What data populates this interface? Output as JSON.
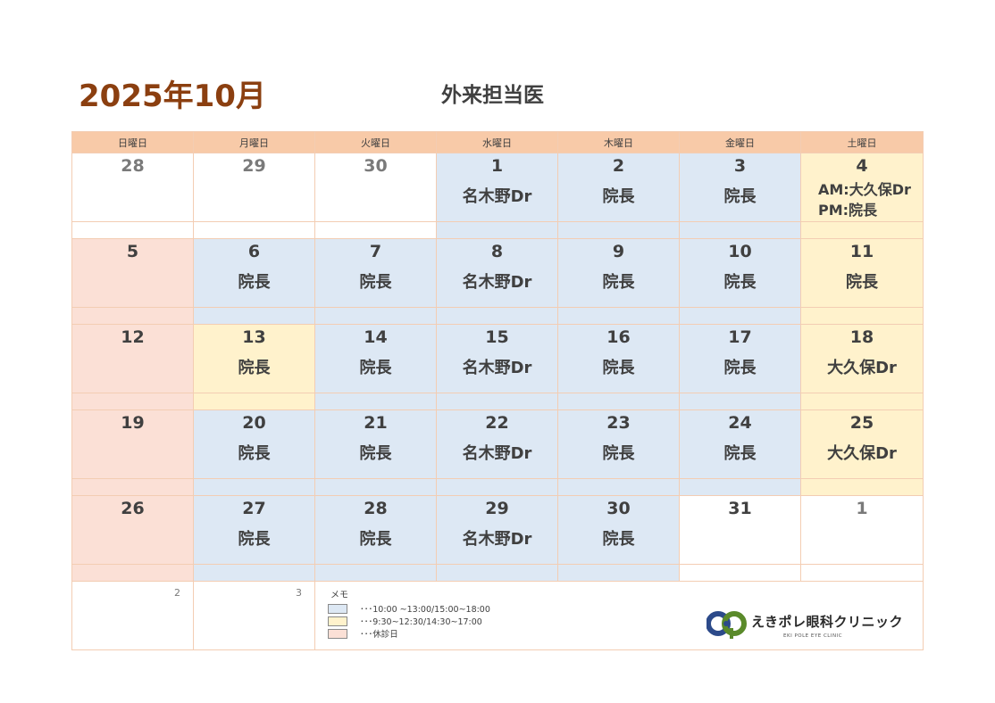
{
  "header": {
    "month_title": "2025年10月",
    "subtitle": "外来担当医"
  },
  "calendar": {
    "weekdays": [
      "日曜日",
      "月曜日",
      "火曜日",
      "水曜日",
      "木曜日",
      "金曜日",
      "土曜日"
    ],
    "weeks": [
      [
        {
          "date": "28",
          "doctor": "",
          "type": "other",
          "color": "white"
        },
        {
          "date": "29",
          "doctor": "",
          "type": "other",
          "color": "white"
        },
        {
          "date": "30",
          "doctor": "",
          "type": "other",
          "color": "white"
        },
        {
          "date": "1",
          "doctor": "名木野Dr",
          "type": "current",
          "color": "blue"
        },
        {
          "date": "2",
          "doctor": "院長",
          "type": "current",
          "color": "blue"
        },
        {
          "date": "3",
          "doctor": "院長",
          "type": "current",
          "color": "blue"
        },
        {
          "date": "4",
          "doctor_am": "AM:大久保Dr",
          "doctor_pm": "PM:院長",
          "type": "current",
          "color": "yellow"
        }
      ],
      [
        {
          "date": "5",
          "doctor": "",
          "type": "current",
          "color": "pink"
        },
        {
          "date": "6",
          "doctor": "院長",
          "type": "current",
          "color": "blue"
        },
        {
          "date": "7",
          "doctor": "院長",
          "type": "current",
          "color": "blue"
        },
        {
          "date": "8",
          "doctor": "名木野Dr",
          "type": "current",
          "color": "blue"
        },
        {
          "date": "9",
          "doctor": "院長",
          "type": "current",
          "color": "blue"
        },
        {
          "date": "10",
          "doctor": "院長",
          "type": "current",
          "color": "blue"
        },
        {
          "date": "11",
          "doctor": "院長",
          "type": "current",
          "color": "yellow"
        }
      ],
      [
        {
          "date": "12",
          "doctor": "",
          "type": "current",
          "color": "pink"
        },
        {
          "date": "13",
          "doctor": "院長",
          "type": "current",
          "color": "yellow"
        },
        {
          "date": "14",
          "doctor": "院長",
          "type": "current",
          "color": "blue"
        },
        {
          "date": "15",
          "doctor": "名木野Dr",
          "type": "current",
          "color": "blue"
        },
        {
          "date": "16",
          "doctor": "院長",
          "type": "current",
          "color": "blue"
        },
        {
          "date": "17",
          "doctor": "院長",
          "type": "current",
          "color": "blue"
        },
        {
          "date": "18",
          "doctor": "大久保Dr",
          "type": "current",
          "color": "yellow"
        }
      ],
      [
        {
          "date": "19",
          "doctor": "",
          "type": "current",
          "color": "pink"
        },
        {
          "date": "20",
          "doctor": "院長",
          "type": "current",
          "color": "blue"
        },
        {
          "date": "21",
          "doctor": "院長",
          "type": "current",
          "color": "blue"
        },
        {
          "date": "22",
          "doctor": "名木野Dr",
          "type": "current",
          "color": "blue"
        },
        {
          "date": "23",
          "doctor": "院長",
          "type": "current",
          "color": "blue"
        },
        {
          "date": "24",
          "doctor": "院長",
          "type": "current",
          "color": "blue"
        },
        {
          "date": "25",
          "doctor": "大久保Dr",
          "type": "current",
          "color": "yellow"
        }
      ],
      [
        {
          "date": "26",
          "doctor": "",
          "type": "current",
          "color": "pink"
        },
        {
          "date": "27",
          "doctor": "院長",
          "type": "current",
          "color": "blue"
        },
        {
          "date": "28",
          "doctor": "院長",
          "type": "current",
          "color": "blue"
        },
        {
          "date": "29",
          "doctor": "名木野Dr",
          "type": "current",
          "color": "blue"
        },
        {
          "date": "30",
          "doctor": "院長",
          "type": "current",
          "color": "blue"
        },
        {
          "date": "31",
          "doctor": "",
          "type": "current",
          "color": "white"
        },
        {
          "date": "1",
          "doctor": "",
          "type": "other",
          "color": "white"
        }
      ]
    ],
    "strips": [
      [
        "white",
        "white",
        "white",
        "blue",
        "blue",
        "blue",
        "yellow"
      ],
      [
        "pink",
        "blue",
        "blue",
        "blue",
        "blue",
        "blue",
        "yellow"
      ],
      [
        "pink",
        "yellow",
        "blue",
        "blue",
        "blue",
        "blue",
        "yellow"
      ],
      [
        "pink",
        "blue",
        "blue",
        "blue",
        "blue",
        "blue",
        "yellow"
      ],
      [
        "pink",
        "blue",
        "blue",
        "blue",
        "blue",
        "white",
        "white"
      ]
    ],
    "next_month": [
      "2",
      "3"
    ]
  },
  "memo": {
    "label": "メモ",
    "legend": [
      {
        "color": "#dde8f4",
        "text": "･･･10:00 ~13:00/15:00~18:00"
      },
      {
        "color": "#fff2cc",
        "text": "･･･9:30~12:30/14:30~17:00"
      },
      {
        "color": "#fbe0d6",
        "text": "･･･休診日"
      }
    ]
  },
  "logo": {
    "name": "えきポレ眼科クリニック",
    "sub": "EKI POLE EYE CLINIC"
  },
  "colors": {
    "blue": "#dde8f4",
    "yellow": "#fff2cc",
    "pink": "#fbe0d6",
    "white": "#ffffff",
    "header": "#f8caa8",
    "title": "#8b3f10"
  }
}
